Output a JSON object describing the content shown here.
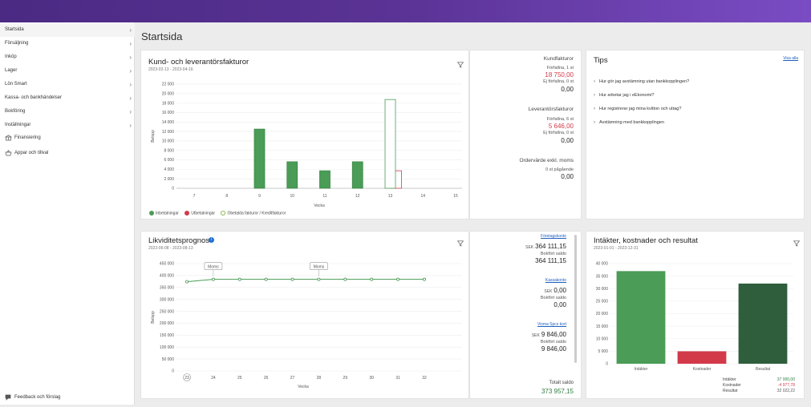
{
  "sidebar": {
    "items": [
      {
        "label": "Startsida",
        "chevron": true,
        "active": true
      },
      {
        "label": "Försäljning",
        "chevron": true
      },
      {
        "label": "Inköp",
        "chevron": true
      },
      {
        "label": "Lager",
        "chevron": true
      },
      {
        "label": "Lön Smart",
        "chevron": true
      },
      {
        "label": "Kassa- och bankhändelser",
        "chevron": true
      },
      {
        "label": "Bokföring",
        "chevron": true
      },
      {
        "label": "Inställningar",
        "chevron": true
      }
    ],
    "finansiering_label": "Finansiering",
    "appar_label": "Appar och tillval",
    "feedback_label": "Feedback och förslag"
  },
  "page": {
    "title": "Startsida"
  },
  "invoices": {
    "title": "Kund- och leverantörsfakturor",
    "period": "2023-02-13 - 2023-04-16",
    "ylabel": "Belopp",
    "xlabel": "Vecka",
    "legend": {
      "in": "Inbetalningar",
      "out": "Utbetalningar",
      "unpaid": "Obetalda fakturor / Kreditfakturor"
    },
    "summary": {
      "kund_title": "Kundfakturor",
      "kund_overdue_label": "Förfallna, 1 st",
      "kund_overdue_value": "18 750,00",
      "kund_notdue_label": "Ej förfallna, 0 st",
      "kund_notdue_value": "0,00",
      "lev_title": "Leverantörsfakturor",
      "lev_overdue_label": "Förfallna, 6 st",
      "lev_overdue_value": "5 646,00",
      "lev_notdue_label": "Ej förfallna, 0 st",
      "lev_notdue_value": "0,00",
      "order_title": "Ordervärde exkl. moms",
      "order_pending_label": "0 st pågående",
      "order_pending_value": "0,00"
    }
  },
  "tips": {
    "title": "Tips",
    "show_all": "Visa alla",
    "items": [
      "Hur gör jag avstämning utan bankkopplingen?",
      "Hur arbetar jag i eEkonomi?",
      "Hur registrerar jag mina kvitton och uttag?",
      "Avstämning med bankkopplingen"
    ]
  },
  "liquidity": {
    "title": "Likviditetsprognos",
    "period": "2023-06-08 - 2023-08-13",
    "ylabel": "Belopp",
    "xlabel": "Vecka",
    "badge_label": "Moms",
    "accounts": [
      {
        "link": "Företagskonto",
        "currency": "SEK",
        "amount": "364 111,15",
        "booked_label": "Bokfört saldo",
        "booked": "364 111,15"
      },
      {
        "link": "Kassakonto",
        "currency": "SEK",
        "amount": "0,00",
        "booked_label": "Bokfört saldo",
        "booked": "0,00"
      },
      {
        "link": "Visma Spcs kort",
        "currency": "SEK",
        "amount": "9 846,00",
        "booked_label": "Bokfört saldo",
        "booked": "9 846,00"
      }
    ],
    "total_label": "Totalt saldo",
    "total_value": "373 957,15"
  },
  "results": {
    "title": "Intäkter, kostnader och resultat",
    "period": "2023-01-01 - 2023-12-31",
    "rows": [
      {
        "label": "Intäkter",
        "value": "37 000,00"
      },
      {
        "label": "Kostnader",
        "value": "-4 977,78"
      },
      {
        "label": "Resultat",
        "value": "32 022,22"
      }
    ]
  },
  "colors": {
    "green": "#4a9c56",
    "dark_green": "#2f5e3d",
    "red": "#d23a4a",
    "link": "#1f5fbf",
    "brand_purple": "#5b3396"
  },
  "chart_data": [
    {
      "type": "bar",
      "title": "Kund- och leverantörsfakturor",
      "xlabel": "Vecka",
      "ylabel": "Belopp",
      "categories": [
        "7",
        "8",
        "9",
        "10",
        "11",
        "12",
        "13",
        "14",
        "15"
      ],
      "ylim": [
        0,
        22000
      ],
      "yticks": [
        0,
        2000,
        4000,
        6000,
        8000,
        10000,
        12000,
        14000,
        16000,
        18000,
        20000,
        22000
      ],
      "ytick_labels": [
        "0",
        "2 000",
        "4 000",
        "6 000",
        "8 000",
        "10 000",
        "12 000",
        "14 000",
        "16 000",
        "18 000",
        "20 000",
        "22 000"
      ],
      "series": [
        {
          "name": "Inbetalningar",
          "values": [
            0,
            0,
            12500,
            5600,
            3700,
            5600,
            0,
            0,
            0
          ]
        },
        {
          "name": "Utbetalningar",
          "values": [
            0,
            0,
            0,
            0,
            0,
            0,
            3700,
            0,
            0
          ]
        },
        {
          "name": "Obetalda fakturor / Kreditfakturor",
          "values": [
            0,
            0,
            0,
            0,
            0,
            0,
            18750,
            0,
            0
          ]
        }
      ]
    },
    {
      "type": "line",
      "title": "Likviditetsprognos",
      "xlabel": "Vecka",
      "ylabel": "Belopp",
      "x": [
        "23",
        "24",
        "25",
        "26",
        "27",
        "28",
        "29",
        "30",
        "31",
        "32"
      ],
      "ylim": [
        0,
        450000
      ],
      "yticks": [
        0,
        50000,
        100000,
        150000,
        200000,
        250000,
        300000,
        350000,
        400000,
        450000
      ],
      "ytick_labels": [
        "0",
        "50 000",
        "100 000",
        "150 000",
        "200 000",
        "250 000",
        "300 000",
        "350 000",
        "400 000",
        "450 000"
      ],
      "values": [
        374000,
        384000,
        384000,
        384000,
        384000,
        384000,
        384000,
        384000,
        384000,
        384000
      ],
      "annotations": [
        {
          "x": "24",
          "text": "Moms"
        },
        {
          "x": "28",
          "text": "Moms"
        }
      ]
    },
    {
      "type": "bar",
      "title": "Intäkter, kostnader och resultat",
      "categories": [
        "Intäkter",
        "Kostnader",
        "Resultat"
      ],
      "ylim": [
        0,
        40000
      ],
      "yticks": [
        0,
        5000,
        10000,
        15000,
        20000,
        25000,
        30000,
        35000,
        40000
      ],
      "ytick_labels": [
        "0",
        "5 000",
        "10 000",
        "15 000",
        "20 000",
        "25 000",
        "30 000",
        "35 000",
        "40 000"
      ],
      "values": [
        37000,
        4977.78,
        32022.22
      ],
      "colors": [
        "#4a9c56",
        "#d23a4a",
        "#2f5e3d"
      ]
    }
  ]
}
